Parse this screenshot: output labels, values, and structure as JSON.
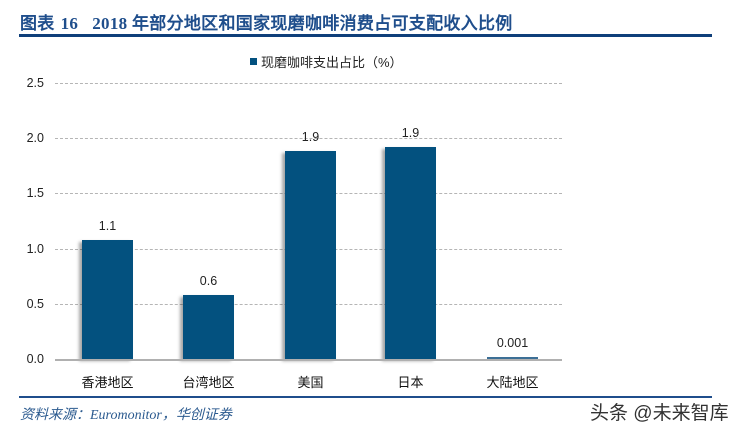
{
  "header": {
    "figure_label": "图表",
    "figure_number": "16",
    "title": "2018 年部分地区和国家现磨咖啡消费占可支配收入比例"
  },
  "footer": {
    "source": "资料来源：Euromonitor，华创证券",
    "watermark": "头条 @未来智库"
  },
  "colors": {
    "bar": "#03517f",
    "title": "#1f4e8c",
    "rule": "#0f3f7a"
  },
  "chart_data": {
    "type": "bar",
    "title": "2018 年部分地区和国家现磨咖啡消费占可支配收入比例",
    "xlabel": "",
    "ylabel": "",
    "categories": [
      "香港地区",
      "台湾地区",
      "美国",
      "日本",
      "大陆地区"
    ],
    "series": [
      {
        "name": "现磨咖啡支出占比（%）",
        "values": [
          1.08,
          0.58,
          1.88,
          1.92,
          0.001
        ],
        "labels": [
          "1.1",
          "0.6",
          "1.9",
          "1.9",
          "0.001"
        ]
      }
    ],
    "ylim": [
      0,
      2.5
    ],
    "yticks": [
      "0.0",
      "0.5",
      "1.0",
      "1.5",
      "2.0",
      "2.5"
    ],
    "grid": true,
    "legend_position": "top"
  }
}
